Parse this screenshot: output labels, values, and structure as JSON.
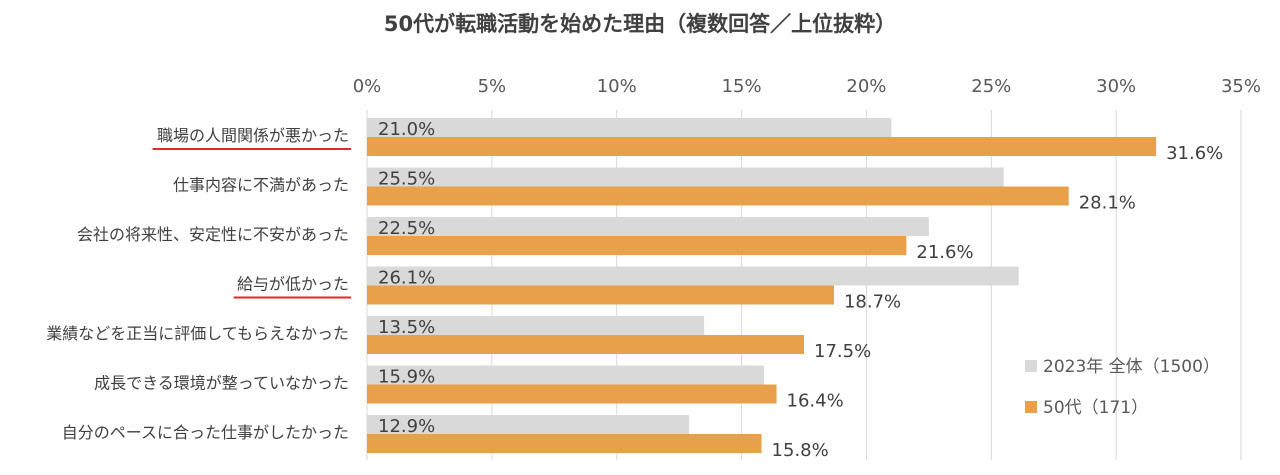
{
  "chart_data": {
    "type": "bar",
    "orientation": "horizontal",
    "title": "50代が転職活動を始めた理由（複数回答／上位抜粋）",
    "categories": [
      "職場の人間関係が悪かった",
      "仕事内容に不満があった",
      "会社の将来性、安定性に不安があった",
      "給与が低かった",
      "業績などを正当に評価してもらえなかった",
      "成長できる環境が整っていなかった",
      "自分のペースに合った仕事がしたかった"
    ],
    "series": [
      {
        "name": "2023年 全体（1500）",
        "color": "#d9d9d9",
        "values": [
          21.0,
          25.5,
          22.5,
          26.1,
          13.5,
          15.9,
          12.9
        ],
        "labels": [
          "21.0%",
          "25.5%",
          "22.5%",
          "26.1%",
          "13.5%",
          "15.9%",
          "12.9%"
        ]
      },
      {
        "name": "50代（171）",
        "color": "#e8a04a",
        "values": [
          31.6,
          28.1,
          21.6,
          18.7,
          17.5,
          16.4,
          15.8
        ],
        "labels": [
          "31.6%",
          "28.1%",
          "21.6%",
          "18.7%",
          "17.5%",
          "16.4%",
          "15.8%"
        ]
      }
    ],
    "xlim": [
      0,
      35
    ],
    "x_ticks": [
      "0%",
      "5%",
      "10%",
      "15%",
      "20%",
      "25%",
      "30%",
      "35%"
    ],
    "x_axis_position": "top",
    "grid": true,
    "legend_position": "right",
    "highlighted_categories": [
      0,
      3
    ],
    "highlight_color": "#e8262b"
  }
}
